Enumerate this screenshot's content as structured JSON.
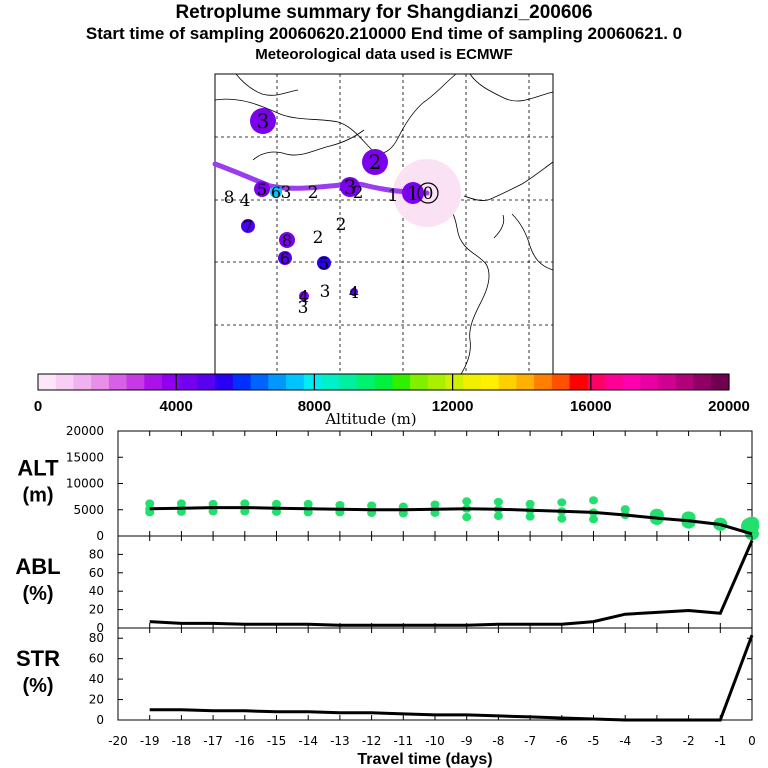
{
  "header": {
    "title": "Retroplume summary for Shangdianzi_200606",
    "sampling_line": "Start time of sampling 20060620.210000     End time of sampling 20060621.     0",
    "met_line": "Meteorological data used is ECMWF"
  },
  "colorbar": {
    "label": "Altitude (m)",
    "ticks": [
      "0",
      "4000",
      "8000",
      "12000",
      "16000",
      "20000"
    ],
    "colors": [
      "#fde6f8",
      "#f8cef4",
      "#f0b2ee",
      "#e98fe8",
      "#d860e8",
      "#c63ae6",
      "#ab11e8",
      "#8f00f0",
      "#7400f0",
      "#5a00f0",
      "#2a00f4",
      "#0030ff",
      "#0064ff",
      "#0098ff",
      "#00c4ff",
      "#00ecf4",
      "#00f0c8",
      "#00f0a0",
      "#00f070",
      "#00f040",
      "#30f000",
      "#80f000",
      "#a8f000",
      "#d0f000",
      "#f0f000",
      "#fff000",
      "#ffd000",
      "#ffb000",
      "#ff8000",
      "#ff5000",
      "#ff0000",
      "#ff0064",
      "#ff0096",
      "#ff00b0",
      "#e800a4",
      "#d00090",
      "#b0007c",
      "#900064",
      "#700050"
    ]
  },
  "map": {
    "labels": [
      {
        "t": "3",
        "c": "#7a00ee",
        "r": 13,
        "halo": 0
      },
      {
        "t": "2",
        "c": "#7a00ee",
        "r": 13,
        "halo": 0
      },
      {
        "t": "8",
        "c": "#5a00f0",
        "r": 0,
        "halo": 0
      },
      {
        "t": "4",
        "c": "#5a00f0",
        "r": 0,
        "halo": 0
      },
      {
        "t": "5",
        "c": "#7a00ee",
        "r": 8,
        "halo": 0
      },
      {
        "t": "6",
        "c": "#00c4ff",
        "r": 6,
        "halo": 0
      },
      {
        "t": "3",
        "c": "#7a00ee",
        "r": 0,
        "halo": 0
      },
      {
        "t": "2",
        "c": "#7a00ee",
        "r": 0,
        "halo": 0
      },
      {
        "t": "3",
        "c": "#7a00ee",
        "r": 10,
        "halo": 0
      },
      {
        "t": "2",
        "c": "#7a00ee",
        "r": 0,
        "halo": 0
      },
      {
        "t": "1",
        "c": "#7a00ee",
        "r": 0,
        "halo": 0
      },
      {
        "t": "1",
        "c": "#7a00ee",
        "r": 11,
        "halo": 0
      },
      {
        "t": "0",
        "c": "#7a00ee",
        "r": 0,
        "halo": 1
      },
      {
        "t": "7",
        "c": "#4a00f0",
        "r": 7,
        "halo": 0
      },
      {
        "t": "8",
        "c": "#7a00ee",
        "r": 8,
        "halo": 0
      },
      {
        "t": "2",
        "c": "#7a00ee",
        "r": 0,
        "halo": 0
      },
      {
        "t": "2",
        "c": "#7a00ee",
        "r": 0,
        "halo": 0
      },
      {
        "t": "6",
        "c": "#5a00f0",
        "r": 7,
        "halo": 0
      },
      {
        "t": "5",
        "c": "#2a00f4",
        "r": 7,
        "halo": 0
      },
      {
        "t": "4",
        "c": "#7a00ee",
        "r": 5,
        "halo": 0
      },
      {
        "t": "3",
        "c": "#7a00ee",
        "r": 0,
        "halo": 0
      },
      {
        "t": "4",
        "c": "#5a00f0",
        "r": 4,
        "halo": 0
      },
      {
        "t": "3",
        "c": "#7a00ee",
        "r": 0,
        "halo": 0
      }
    ]
  },
  "chart_data": [
    {
      "type": "scatter",
      "panel": "ALT",
      "ylabel": "ALT (m)",
      "ylim": [
        0,
        20000
      ],
      "yticks": [
        "20000",
        "15000",
        "10000",
        "5000",
        "0"
      ],
      "xlim": [
        -20,
        0
      ],
      "x": [
        -19,
        -18,
        -17,
        -16,
        -15,
        -14,
        -13,
        -12,
        -11,
        -10,
        -9,
        -8,
        -7,
        -6,
        -5,
        -4,
        -3,
        -2,
        -1,
        0
      ],
      "median": [
        5200,
        5300,
        5400,
        5400,
        5300,
        5200,
        5100,
        5000,
        5000,
        5100,
        5200,
        5100,
        4900,
        4700,
        4500,
        4000,
        3400,
        2900,
        2200,
        400
      ],
      "spread_low": [
        4500,
        4600,
        4700,
        4700,
        4600,
        4500,
        4500,
        4400,
        4300,
        4400,
        3600,
        3800,
        3700,
        3300,
        3200,
        4000,
        3300,
        2600,
        2200,
        1800
      ],
      "spread_high": [
        6200,
        6200,
        6100,
        6200,
        6100,
        6100,
        5900,
        5800,
        5600,
        6000,
        6600,
        6500,
        6100,
        6400,
        6800,
        5100,
        4000,
        3500,
        2300,
        2500
      ]
    },
    {
      "type": "line",
      "panel": "ABL",
      "ylabel": "ABL (%)",
      "ylim": [
        0,
        100
      ],
      "yticks": [
        "80",
        "60",
        "40",
        "20",
        "0"
      ],
      "x": [
        -19,
        -18,
        -17,
        -16,
        -15,
        -14,
        -13,
        -12,
        -11,
        -10,
        -9,
        -8,
        -7,
        -6,
        -5,
        -4,
        -3,
        -2,
        -1,
        0
      ],
      "values": [
        7,
        5,
        5,
        4,
        4,
        4,
        3,
        3,
        3,
        3,
        3,
        4,
        4,
        4,
        7,
        15,
        17,
        19,
        16,
        95
      ]
    },
    {
      "type": "line",
      "panel": "STR",
      "ylabel": "STR (%)",
      "ylim": [
        0,
        90
      ],
      "yticks": [
        "80",
        "60",
        "40",
        "20",
        "0"
      ],
      "x": [
        -19,
        -18,
        -17,
        -16,
        -15,
        -14,
        -13,
        -12,
        -11,
        -10,
        -9,
        -8,
        -7,
        -6,
        -5,
        -4,
        -3,
        -2,
        -1,
        0
      ],
      "values": [
        10,
        10,
        9,
        9,
        8,
        8,
        7,
        7,
        6,
        5,
        5,
        4,
        3,
        2,
        1,
        0,
        0,
        0,
        0,
        83
      ],
      "xlabel": "Travel time (days)",
      "xticks": [
        "-20",
        "-19",
        "-18",
        "-17",
        "-16",
        "-15",
        "-14",
        "-13",
        "-12",
        "-11",
        "-10",
        "-9",
        "-8",
        "-7",
        "-6",
        "-5",
        "-4",
        "-3",
        "-2",
        "-1",
        "0"
      ]
    }
  ]
}
